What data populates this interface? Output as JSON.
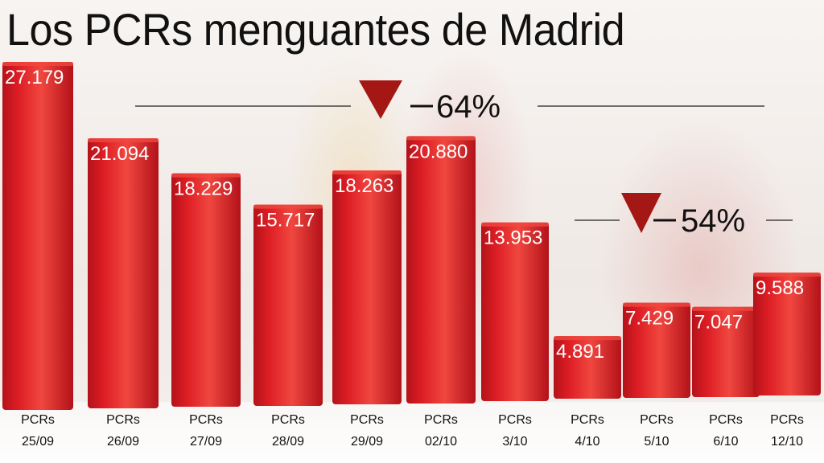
{
  "title": "Los PCRs menguantes de Madrid",
  "colors": {
    "bar": "#dd1d24",
    "bar_highlight": "#f0473f",
    "bar_dark": "#b3121a",
    "marker": "#a51714",
    "text_on_bar": "#ffffff",
    "text": "#111111"
  },
  "chart_data": {
    "type": "bar",
    "title": "Los PCRs menguantes de Madrid",
    "categories": [
      "PCRs 25/09",
      "PCRs 26/09",
      "PCRs 27/09",
      "PCRs 28/09",
      "PCRs 29/09",
      "PCRs 02/10",
      "PCRs 3/10",
      "PCRs 4/10",
      "PCRs 5/10",
      "PCRs 6/10",
      "PCRs 12/10"
    ],
    "category_lines": [
      [
        "PCRs",
        "25/09"
      ],
      [
        "PCRs",
        "26/09"
      ],
      [
        "PCRs",
        "27/09"
      ],
      [
        "PCRs",
        "28/09"
      ],
      [
        "PCRs",
        "29/09"
      ],
      [
        "PCRs",
        "02/10"
      ],
      [
        "PCRs",
        "3/10"
      ],
      [
        "PCRs",
        "4/10"
      ],
      [
        "PCRs",
        "5/10"
      ],
      [
        "PCRs",
        "6/10"
      ],
      [
        "PCRs",
        "12/10"
      ]
    ],
    "values": [
      27179,
      21094,
      18229,
      15717,
      18263,
      20880,
      13953,
      4891,
      7429,
      7047,
      9588
    ],
    "data_labels": [
      "27.179",
      "21.094",
      "18.229",
      "15.717",
      "18.263",
      "20.880",
      "13.953",
      "4.891",
      "7.429",
      "7.047",
      "9.588"
    ],
    "ylim": [
      0,
      27179
    ],
    "xlabel": "",
    "ylabel": "",
    "grid": false,
    "legend": "none",
    "annotations": [
      {
        "text": "64%",
        "from_category": "PCRs 25/09",
        "to_category": "PCRs 4/10",
        "icon": "down-triangle-icon"
      },
      {
        "text": "54%",
        "from_category": "PCRs 4/10",
        "to_category": "PCRs 12/10",
        "icon": "down-triangle-icon"
      }
    ]
  }
}
